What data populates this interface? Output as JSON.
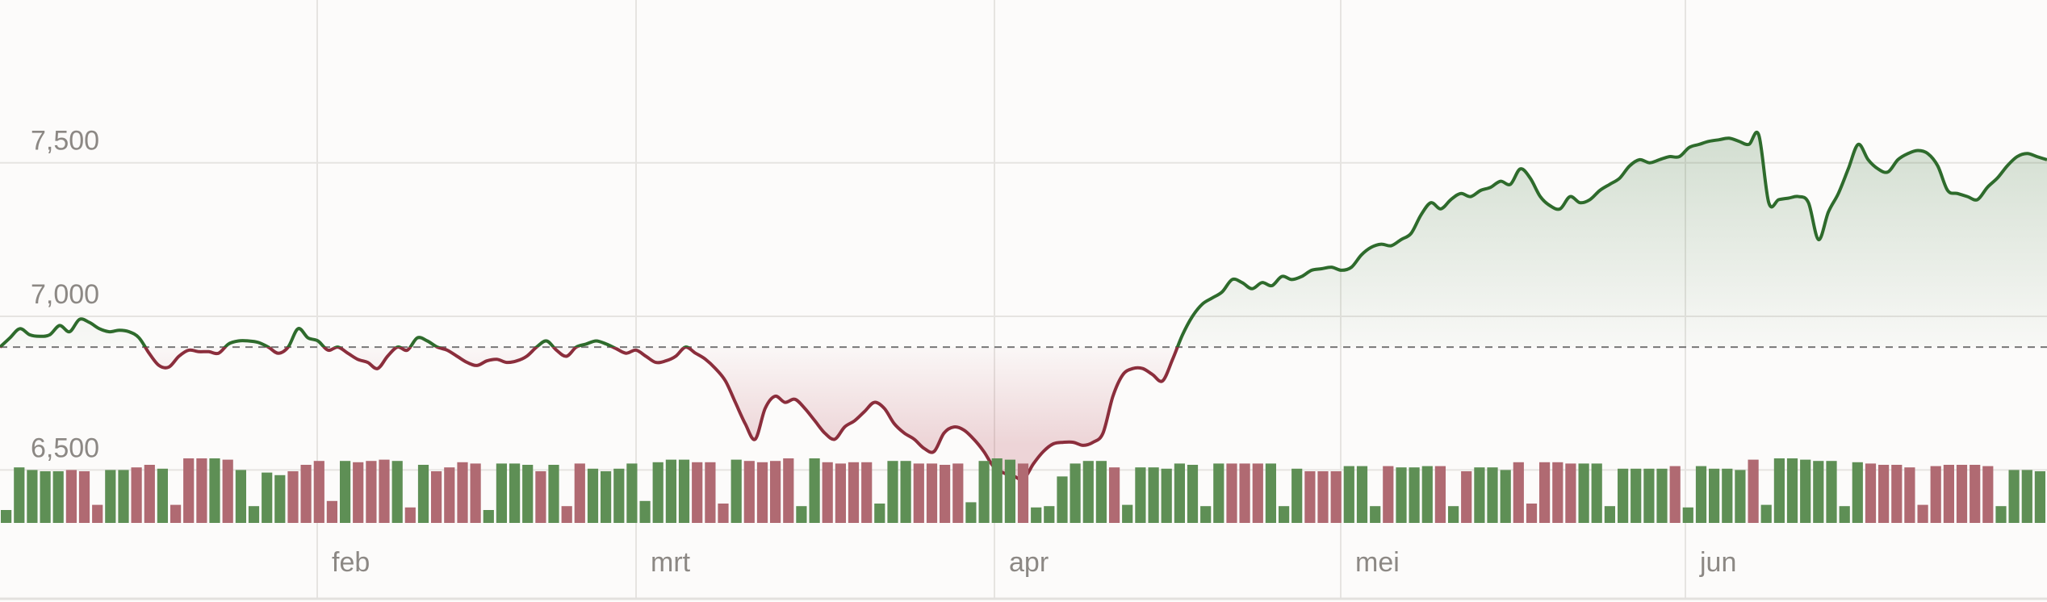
{
  "chart_data": {
    "type": "line",
    "title": "",
    "xlabel": "",
    "ylabel": "",
    "y_ticks": [
      6500,
      7000,
      7500
    ],
    "y_tick_labels": [
      "6,500",
      "7,000",
      "7,500"
    ],
    "x_tick_labels": [
      "feb",
      "mrt",
      "apr",
      "mei",
      "jun"
    ],
    "ylim": [
      6070,
      8030
    ],
    "baseline": 6900,
    "grid": true,
    "colors": {
      "up_line": "#2e6b2c",
      "down_line": "#8b2e3c",
      "up_fill": "#2e6b2c",
      "down_fill": "#b03a4a",
      "up_volume": "#5e8f55",
      "down_volume": "#b06a72"
    },
    "series": [
      {
        "values": [
          6900,
          6930,
          6960,
          6940,
          6935,
          6940,
          6970,
          6950,
          6990,
          6980,
          6960,
          6950,
          6955,
          6950,
          6930,
          6880,
          6840,
          6835,
          6870,
          6890,
          6885,
          6885,
          6880,
          6910,
          6920,
          6920,
          6915,
          6900,
          6880,
          6900,
          6960,
          6930,
          6920,
          6890,
          6900,
          6880,
          6860,
          6850,
          6830,
          6870,
          6900,
          6890,
          6930,
          6920,
          6900,
          6890,
          6870,
          6850,
          6840,
          6855,
          6860,
          6850,
          6855,
          6870,
          6900,
          6920,
          6890,
          6870,
          6900,
          6910,
          6920,
          6910,
          6895,
          6880,
          6890,
          6870,
          6850,
          6855,
          6870,
          6900,
          6880,
          6860,
          6830,
          6790,
          6720,
          6650,
          6600,
          6700,
          6740,
          6720,
          6730,
          6700,
          6660,
          6620,
          6600,
          6640,
          6660,
          6690,
          6720,
          6700,
          6650,
          6620,
          6600,
          6570,
          6560,
          6620,
          6640,
          6630,
          6600,
          6560,
          6510,
          6490,
          6480,
          6470,
          6520,
          6560,
          6585,
          6590,
          6590,
          6580,
          6590,
          6620,
          6740,
          6810,
          6830,
          6830,
          6810,
          6790,
          6860,
          6940,
          7000,
          7040,
          7060,
          7080,
          7120,
          7110,
          7090,
          7110,
          7100,
          7130,
          7120,
          7130,
          7150,
          7155,
          7160,
          7150,
          7160,
          7200,
          7225,
          7235,
          7230,
          7250,
          7270,
          7330,
          7370,
          7350,
          7380,
          7400,
          7390,
          7410,
          7420,
          7440,
          7430,
          7480,
          7450,
          7390,
          7360,
          7350,
          7390,
          7370,
          7380,
          7410,
          7430,
          7450,
          7490,
          7510,
          7500,
          7510,
          7520,
          7520,
          7550,
          7560,
          7570,
          7575,
          7580,
          7570,
          7560,
          7590,
          7370,
          7380,
          7385,
          7390,
          7370,
          7250,
          7340,
          7400,
          7480,
          7560,
          7510,
          7480,
          7470,
          7510,
          7530,
          7540,
          7530,
          7490,
          7410,
          7400,
          7390,
          7380,
          7420,
          7450,
          7490,
          7520,
          7530,
          7520,
          7510
        ]
      }
    ],
    "volume": [
      {
        "v": 0.2,
        "up": true
      },
      {
        "v": 0.86,
        "up": true
      },
      {
        "v": 0.82,
        "up": true
      },
      {
        "v": 0.8,
        "up": true
      },
      {
        "v": 0.8,
        "up": true
      },
      {
        "v": 0.82,
        "up": false
      },
      {
        "v": 0.8,
        "up": false
      },
      {
        "v": 0.28,
        "up": false
      },
      {
        "v": 0.82,
        "up": true
      },
      {
        "v": 0.82,
        "up": true
      },
      {
        "v": 0.86,
        "up": false
      },
      {
        "v": 0.9,
        "up": false
      },
      {
        "v": 0.84,
        "up": true
      },
      {
        "v": 0.28,
        "up": false
      },
      {
        "v": 1.0,
        "up": false
      },
      {
        "v": 1.0,
        "up": false
      },
      {
        "v": 1.0,
        "up": true
      },
      {
        "v": 0.98,
        "up": false
      },
      {
        "v": 0.82,
        "up": true
      },
      {
        "v": 0.26,
        "up": true
      },
      {
        "v": 0.78,
        "up": true
      },
      {
        "v": 0.74,
        "up": true
      },
      {
        "v": 0.8,
        "up": false
      },
      {
        "v": 0.9,
        "up": false
      },
      {
        "v": 0.96,
        "up": false
      },
      {
        "v": 0.34,
        "up": false
      },
      {
        "v": 0.96,
        "up": true
      },
      {
        "v": 0.94,
        "up": false
      },
      {
        "v": 0.96,
        "up": false
      },
      {
        "v": 0.98,
        "up": false
      },
      {
        "v": 0.96,
        "up": true
      },
      {
        "v": 0.24,
        "up": false
      },
      {
        "v": 0.9,
        "up": true
      },
      {
        "v": 0.8,
        "up": false
      },
      {
        "v": 0.86,
        "up": false
      },
      {
        "v": 0.94,
        "up": false
      },
      {
        "v": 0.92,
        "up": false
      },
      {
        "v": 0.2,
        "up": true
      },
      {
        "v": 0.92,
        "up": true
      },
      {
        "v": 0.92,
        "up": true
      },
      {
        "v": 0.9,
        "up": true
      },
      {
        "v": 0.8,
        "up": false
      },
      {
        "v": 0.9,
        "up": true
      },
      {
        "v": 0.26,
        "up": false
      },
      {
        "v": 0.92,
        "up": false
      },
      {
        "v": 0.84,
        "up": true
      },
      {
        "v": 0.8,
        "up": true
      },
      {
        "v": 0.84,
        "up": true
      },
      {
        "v": 0.92,
        "up": true
      },
      {
        "v": 0.34,
        "up": true
      },
      {
        "v": 0.94,
        "up": true
      },
      {
        "v": 0.98,
        "up": true
      },
      {
        "v": 0.98,
        "up": true
      },
      {
        "v": 0.94,
        "up": false
      },
      {
        "v": 0.94,
        "up": false
      },
      {
        "v": 0.3,
        "up": false
      },
      {
        "v": 0.98,
        "up": true
      },
      {
        "v": 0.96,
        "up": false
      },
      {
        "v": 0.94,
        "up": false
      },
      {
        "v": 0.96,
        "up": false
      },
      {
        "v": 1.0,
        "up": false
      },
      {
        "v": 0.26,
        "up": true
      },
      {
        "v": 1.0,
        "up": true
      },
      {
        "v": 0.94,
        "up": false
      },
      {
        "v": 0.92,
        "up": false
      },
      {
        "v": 0.94,
        "up": false
      },
      {
        "v": 0.94,
        "up": false
      },
      {
        "v": 0.3,
        "up": true
      },
      {
        "v": 0.96,
        "up": true
      },
      {
        "v": 0.96,
        "up": true
      },
      {
        "v": 0.92,
        "up": false
      },
      {
        "v": 0.92,
        "up": false
      },
      {
        "v": 0.9,
        "up": false
      },
      {
        "v": 0.92,
        "up": false
      },
      {
        "v": 0.32,
        "up": true
      },
      {
        "v": 0.96,
        "up": true
      },
      {
        "v": 1.0,
        "up": true
      },
      {
        "v": 0.98,
        "up": true
      },
      {
        "v": 0.92,
        "up": false
      },
      {
        "v": 0.24,
        "up": true
      },
      {
        "v": 0.26,
        "up": true
      },
      {
        "v": 0.72,
        "up": true
      },
      {
        "v": 0.92,
        "up": true
      },
      {
        "v": 0.96,
        "up": true
      },
      {
        "v": 0.96,
        "up": true
      },
      {
        "v": 0.86,
        "up": false
      },
      {
        "v": 0.28,
        "up": true
      },
      {
        "v": 0.86,
        "up": true
      },
      {
        "v": 0.86,
        "up": true
      },
      {
        "v": 0.84,
        "up": true
      },
      {
        "v": 0.92,
        "up": true
      },
      {
        "v": 0.9,
        "up": true
      },
      {
        "v": 0.26,
        "up": true
      },
      {
        "v": 0.92,
        "up": true
      },
      {
        "v": 0.92,
        "up": false
      },
      {
        "v": 0.92,
        "up": false
      },
      {
        "v": 0.92,
        "up": false
      },
      {
        "v": 0.92,
        "up": true
      },
      {
        "v": 0.26,
        "up": true
      },
      {
        "v": 0.84,
        "up": true
      },
      {
        "v": 0.8,
        "up": false
      },
      {
        "v": 0.8,
        "up": false
      },
      {
        "v": 0.8,
        "up": false
      },
      {
        "v": 0.88,
        "up": true
      },
      {
        "v": 0.88,
        "up": true
      },
      {
        "v": 0.26,
        "up": true
      },
      {
        "v": 0.88,
        "up": false
      },
      {
        "v": 0.86,
        "up": true
      },
      {
        "v": 0.86,
        "up": true
      },
      {
        "v": 0.88,
        "up": true
      },
      {
        "v": 0.88,
        "up": false
      },
      {
        "v": 0.26,
        "up": true
      },
      {
        "v": 0.8,
        "up": false
      },
      {
        "v": 0.86,
        "up": true
      },
      {
        "v": 0.86,
        "up": true
      },
      {
        "v": 0.82,
        "up": true
      },
      {
        "v": 0.94,
        "up": false
      },
      {
        "v": 0.3,
        "up": false
      },
      {
        "v": 0.94,
        "up": false
      },
      {
        "v": 0.94,
        "up": false
      },
      {
        "v": 0.92,
        "up": false
      },
      {
        "v": 0.92,
        "up": true
      },
      {
        "v": 0.92,
        "up": true
      },
      {
        "v": 0.26,
        "up": true
      },
      {
        "v": 0.84,
        "up": true
      },
      {
        "v": 0.84,
        "up": true
      },
      {
        "v": 0.84,
        "up": true
      },
      {
        "v": 0.84,
        "up": true
      },
      {
        "v": 0.88,
        "up": false
      },
      {
        "v": 0.24,
        "up": true
      },
      {
        "v": 0.88,
        "up": true
      },
      {
        "v": 0.84,
        "up": true
      },
      {
        "v": 0.84,
        "up": true
      },
      {
        "v": 0.82,
        "up": true
      },
      {
        "v": 0.98,
        "up": false
      },
      {
        "v": 0.28,
        "up": true
      },
      {
        "v": 1.0,
        "up": true
      },
      {
        "v": 1.0,
        "up": true
      },
      {
        "v": 0.98,
        "up": true
      },
      {
        "v": 0.96,
        "up": true
      },
      {
        "v": 0.96,
        "up": true
      },
      {
        "v": 0.26,
        "up": true
      },
      {
        "v": 0.94,
        "up": true
      },
      {
        "v": 0.92,
        "up": false
      },
      {
        "v": 0.9,
        "up": false
      },
      {
        "v": 0.9,
        "up": false
      },
      {
        "v": 0.86,
        "up": false
      },
      {
        "v": 0.28,
        "up": false
      },
      {
        "v": 0.88,
        "up": false
      },
      {
        "v": 0.9,
        "up": false
      },
      {
        "v": 0.9,
        "up": false
      },
      {
        "v": 0.9,
        "up": false
      },
      {
        "v": 0.88,
        "up": false
      },
      {
        "v": 0.26,
        "up": true
      },
      {
        "v": 0.82,
        "up": true
      },
      {
        "v": 0.82,
        "up": true
      },
      {
        "v": 0.8,
        "up": true
      }
    ]
  }
}
